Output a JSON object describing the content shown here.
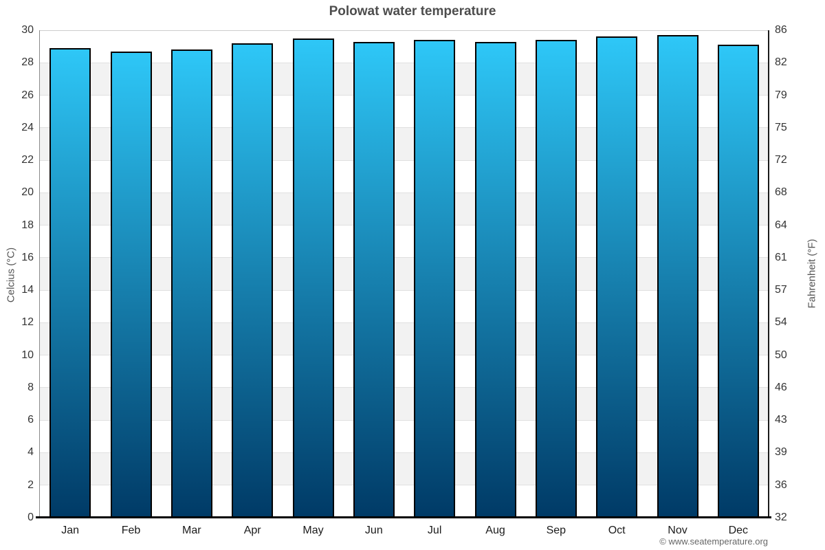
{
  "title": "Polowat water temperature",
  "credit": "© www.seatemperature.org",
  "chart_data": {
    "type": "bar",
    "title": "Polowat water temperature",
    "categories": [
      "Jan",
      "Feb",
      "Mar",
      "Apr",
      "May",
      "Jun",
      "Jul",
      "Aug",
      "Sep",
      "Oct",
      "Nov",
      "Dec"
    ],
    "values": [
      28.9,
      28.7,
      28.8,
      29.2,
      29.5,
      29.3,
      29.4,
      29.3,
      29.4,
      29.6,
      29.7,
      29.1
    ],
    "unit": "°C",
    "xlabel": "",
    "ylabel_left": "Celcius (°C)",
    "ylabel_right": "Fahrenheit (°F)",
    "ylim": [
      0,
      30
    ],
    "yticks_celsius": [
      30,
      28,
      26,
      24,
      22,
      20,
      18,
      16,
      14,
      12,
      10,
      8,
      6,
      4,
      2,
      0
    ],
    "yticks_fahrenheit": [
      86,
      82,
      79,
      75,
      72,
      68,
      64,
      61,
      57,
      54,
      50,
      46,
      43,
      39,
      36,
      32
    ],
    "grid": "alternating-horizontal-bands",
    "legend": "none",
    "colors": {
      "bar_gradient_top": "#2ec7f7",
      "bar_gradient_bottom": "#003a66",
      "bar_border": "#000000",
      "band_main": "#ffffff",
      "band_alt": "#f2f2f2",
      "title_text": "#4d4d4d",
      "axis_text": "#333333",
      "axis_title_text": "#555555",
      "credit_text": "#666666"
    }
  }
}
